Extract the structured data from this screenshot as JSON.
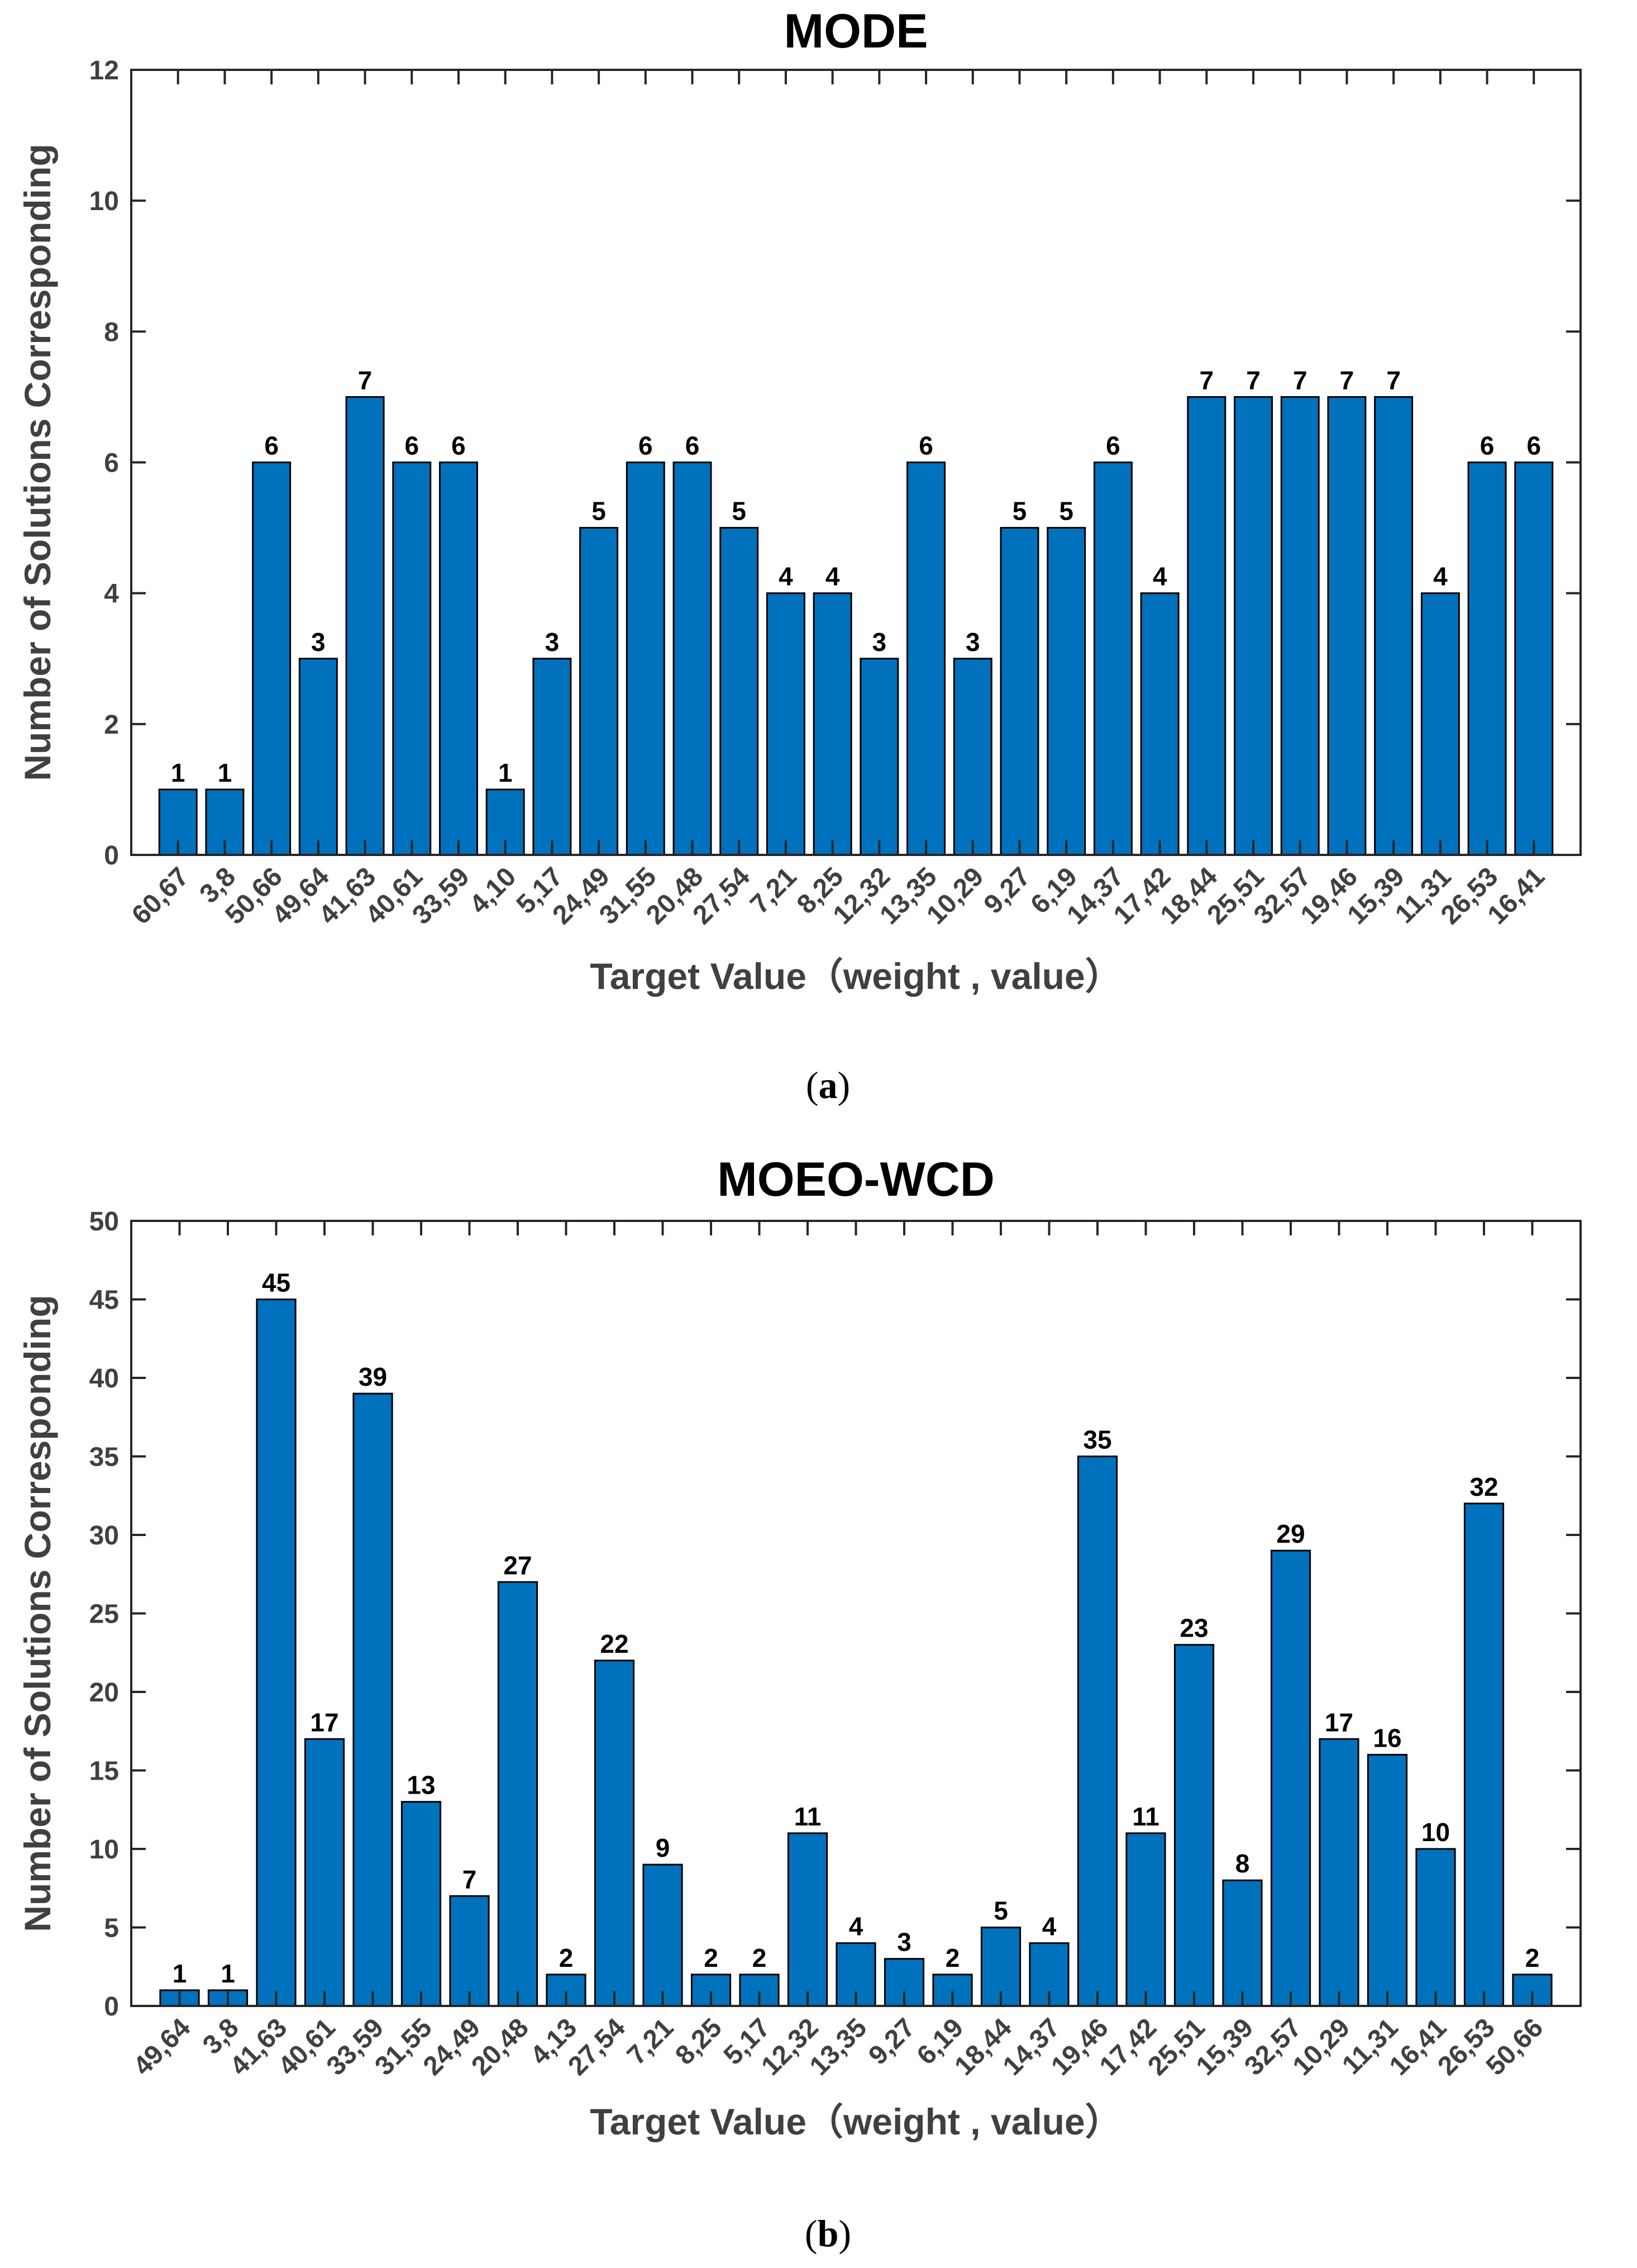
{
  "chart_data": [
    {
      "type": "bar",
      "title": "MODE",
      "xlabel": "Target Value（weight , value）",
      "ylabel": "Number of Solutions Corresponding",
      "caption": {
        "open": "(",
        "letter": "a",
        "close": ")"
      },
      "ylim": [
        0,
        12
      ],
      "yticks": [
        0,
        2,
        4,
        6,
        8,
        10,
        12
      ],
      "grid": false,
      "bar_color": "#0072BD",
      "categories": [
        "60,67",
        "3,8",
        "50,66",
        "49,64",
        "41,63",
        "40,61",
        "33,59",
        "4,10",
        "5,17",
        "24,49",
        "31,55",
        "20,48",
        "27,54",
        "7,21",
        "8,25",
        "12,32",
        "13,35",
        "10,29",
        "9,27",
        "6,19",
        "14,37",
        "17,42",
        "18,44",
        "25,51",
        "32,57",
        "19,46",
        "15,39",
        "11,31",
        "26,53",
        "16,41"
      ],
      "values": [
        1,
        1,
        6,
        3,
        7,
        6,
        6,
        1,
        3,
        5,
        6,
        6,
        5,
        4,
        4,
        3,
        6,
        3,
        5,
        5,
        6,
        4,
        7,
        7,
        7,
        7,
        7,
        4,
        6,
        6
      ]
    },
    {
      "type": "bar",
      "title": "MOEO-WCD",
      "xlabel": "Target Value（weight , value）",
      "ylabel": "Number of Solutions Corresponding",
      "caption": {
        "open": "(",
        "letter": "b",
        "close": ")"
      },
      "ylim": [
        0,
        50
      ],
      "yticks": [
        0,
        5,
        10,
        15,
        20,
        25,
        30,
        35,
        40,
        45,
        50
      ],
      "grid": false,
      "bar_color": "#0072BD",
      "categories": [
        "49,64",
        "3,8",
        "41,63",
        "40,61",
        "33,59",
        "31,55",
        "24,49",
        "20,48",
        "4,13",
        "27,54",
        "7,21",
        "8,25",
        "5,17",
        "12,32",
        "13,35",
        "9,27",
        "6,19",
        "18,44",
        "14,37",
        "19,46",
        "17,42",
        "25,51",
        "15,39",
        "32,57",
        "10,29",
        "11,31",
        "16,41",
        "26,53",
        "50,66"
      ],
      "values": [
        1,
        1,
        45,
        17,
        39,
        13,
        7,
        27,
        2,
        22,
        9,
        2,
        2,
        11,
        4,
        3,
        2,
        5,
        4,
        35,
        11,
        23,
        8,
        29,
        17,
        16,
        10,
        32,
        2
      ]
    }
  ]
}
